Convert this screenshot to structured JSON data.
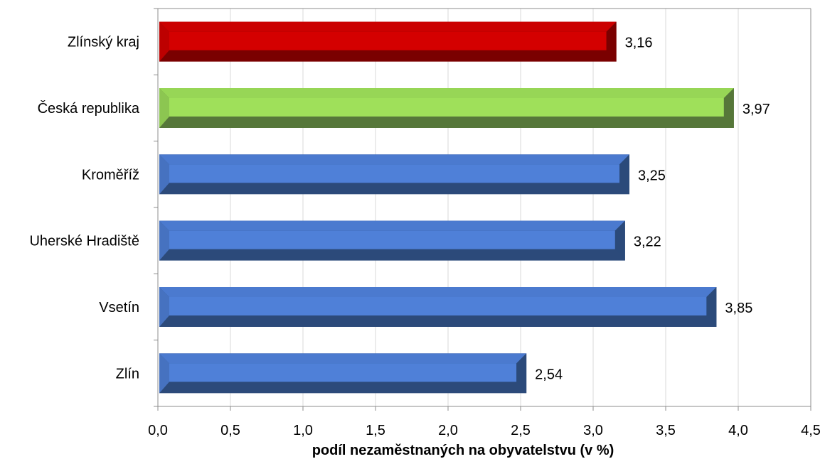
{
  "chart_data": {
    "type": "bar",
    "orientation": "horizontal",
    "categories": [
      "Zlínský kraj",
      "Česká republika",
      "Kroměříž",
      "Uherské Hradiště",
      "Vsetín",
      "Zlín"
    ],
    "values": [
      3.16,
      3.97,
      3.25,
      3.22,
      3.85,
      2.54
    ],
    "value_labels": [
      "3,16",
      "3,97",
      "3,25",
      "3,22",
      "3,85",
      "2,54"
    ],
    "bar_colors": [
      "#d40000",
      "#9fe05a",
      "#4f80d8",
      "#4f80d8",
      "#4f80d8",
      "#4f80d8"
    ],
    "bar_dark_colors": [
      "#7a0000",
      "#56773a",
      "#2c4a7a",
      "#2c4a7a",
      "#2c4a7a",
      "#2c4a7a"
    ],
    "xlabel": "podíl nezaměstnaných na obyvatelstvu (v %)",
    "ylabel": "",
    "xlim": [
      0,
      4.5
    ],
    "xticks": [
      0,
      0.5,
      1.0,
      1.5,
      2.0,
      2.5,
      3.0,
      3.5,
      4.0,
      4.5
    ],
    "xtick_labels": [
      "0,0",
      "0,5",
      "1,0",
      "1,5",
      "2,0",
      "2,5",
      "3,0",
      "3,5",
      "4,0",
      "4,5"
    ],
    "grid": "vertical",
    "gridline_color": "#d9d9d9",
    "frame_color": "#8c8c8c"
  }
}
